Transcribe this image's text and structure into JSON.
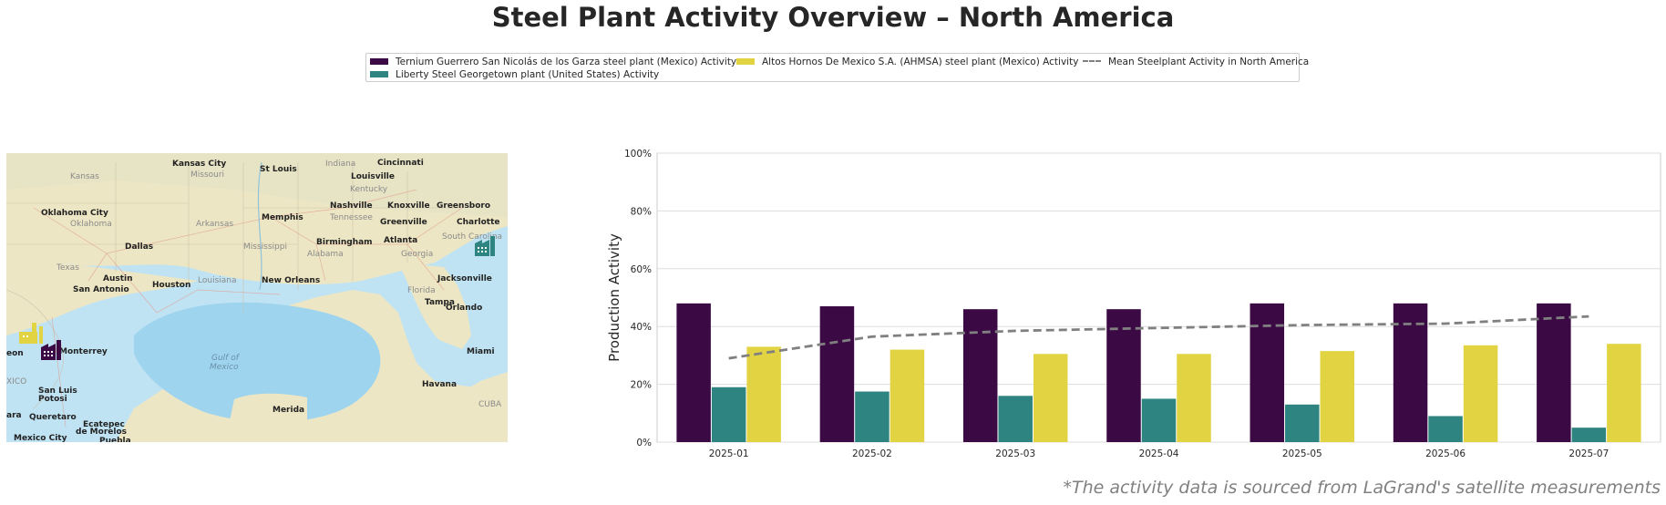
{
  "title": "Steel Plant Activity Overview – North America",
  "footnote": "*The activity data is sourced from LaGrand's satellite measurements",
  "legend": {
    "ternium": "Ternium Guerrero San Nicolás de los Garza steel plant (Mexico) Activity",
    "liberty": "Liberty Steel Georgetown plant (United States) Activity",
    "ahmsa": "Altos Hornos De Mexico S.A. (AHMSA) steel plant (Mexico) Activity",
    "mean": "Mean Steelplant Activity in North America"
  },
  "colors": {
    "ternium": "#3b0a45",
    "liberty": "#2e8480",
    "ahmsa": "#e1d341",
    "mean": "#808080"
  },
  "map": {
    "icons": [
      "factory-icon-ternium",
      "factory-icon-liberty",
      "factory-icon-ahmsa"
    ],
    "cities": [
      {
        "name": "Kansas City",
        "cls": "mlab"
      },
      {
        "name": "St Louis",
        "cls": "mlab"
      },
      {
        "name": "Indiana",
        "cls": "mlab2"
      },
      {
        "name": "Cincinnati",
        "cls": "mlab"
      },
      {
        "name": "Kansas",
        "cls": "mlab2"
      },
      {
        "name": "Missouri",
        "cls": "mlab2"
      },
      {
        "name": "Louisville",
        "cls": "mlab"
      },
      {
        "name": "Kentucky",
        "cls": "mlab2"
      },
      {
        "name": "Oklahoma City",
        "cls": "mlab"
      },
      {
        "name": "Oklahoma",
        "cls": "mlab2"
      },
      {
        "name": "Arkansas",
        "cls": "mlab2"
      },
      {
        "name": "Memphis",
        "cls": "mlab"
      },
      {
        "name": "Nashville",
        "cls": "mlab"
      },
      {
        "name": "Knoxville",
        "cls": "mlab"
      },
      {
        "name": "Greensboro",
        "cls": "mlab"
      },
      {
        "name": "Tennessee",
        "cls": "mlab2"
      },
      {
        "name": "Greenville",
        "cls": "mlab"
      },
      {
        "name": "Charlotte",
        "cls": "mlab"
      },
      {
        "name": "Dallas",
        "cls": "mlab"
      },
      {
        "name": "Mississippi",
        "cls": "mlab2"
      },
      {
        "name": "Birmingham",
        "cls": "mlab"
      },
      {
        "name": "Atlanta",
        "cls": "mlab"
      },
      {
        "name": "South Carolina",
        "cls": "mlab2"
      },
      {
        "name": "Alabama",
        "cls": "mlab2"
      },
      {
        "name": "Georgia",
        "cls": "mlab2"
      },
      {
        "name": "Texas",
        "cls": "mlab2"
      },
      {
        "name": "Austin",
        "cls": "mlab"
      },
      {
        "name": "Houston",
        "cls": "mlab"
      },
      {
        "name": "Louisiana",
        "cls": "mlab2"
      },
      {
        "name": "New Orleans",
        "cls": "mlab"
      },
      {
        "name": "Jacksonville",
        "cls": "mlab"
      },
      {
        "name": "San Antonio",
        "cls": "mlab"
      },
      {
        "name": "Florida",
        "cls": "mlab2"
      },
      {
        "name": "Orlando",
        "cls": "mlab"
      },
      {
        "name": "Tampa",
        "cls": "mlab"
      },
      {
        "name": "Gulf of",
        "cls": "mwater"
      },
      {
        "name": "Mexico",
        "cls": "mwater"
      },
      {
        "name": "Monterrey",
        "cls": "mlab"
      },
      {
        "name": "Miami",
        "cls": "mlab"
      },
      {
        "name": "eon",
        "cls": "mlab"
      },
      {
        "name": "XICO",
        "cls": "mlab2"
      },
      {
        "name": "San Luis",
        "cls": "mlab"
      },
      {
        "name": "Potosi",
        "cls": "mlab"
      },
      {
        "name": "Havana",
        "cls": "mlab"
      },
      {
        "name": "Merida",
        "cls": "mlab"
      },
      {
        "name": "ara",
        "cls": "mlab"
      },
      {
        "name": "Queretaro",
        "cls": "mlab"
      },
      {
        "name": "Ecatepec",
        "cls": "mlab"
      },
      {
        "name": "de Morelos",
        "cls": "mlab"
      },
      {
        "name": "CUBA",
        "cls": "mlab2"
      },
      {
        "name": "Mexico City",
        "cls": "mlab"
      },
      {
        "name": "Puebla",
        "cls": "mlab"
      }
    ]
  },
  "chart_data": {
    "type": "bar",
    "title": "",
    "xlabel": "",
    "ylabel": "Production Activity",
    "ylim": [
      0,
      100
    ],
    "yticks": [
      "0%",
      "20%",
      "40%",
      "60%",
      "80%",
      "100%"
    ],
    "grid": true,
    "legend_position": "top-center",
    "categories": [
      "2025-01",
      "2025-02",
      "2025-03",
      "2025-04",
      "2025-05",
      "2025-06",
      "2025-07"
    ],
    "series": [
      {
        "name": "Ternium Guerrero San Nicolás de los Garza steel plant (Mexico) Activity",
        "type": "bar",
        "color": "#3b0a45",
        "values": [
          48,
          47,
          46,
          46,
          48,
          48,
          48
        ]
      },
      {
        "name": "Liberty Steel Georgetown plant (United States) Activity",
        "type": "bar",
        "color": "#2e8480",
        "values": [
          19,
          17.5,
          16,
          15,
          13,
          9,
          5
        ]
      },
      {
        "name": "Altos Hornos De Mexico S.A. (AHMSA) steel plant (Mexico) Activity",
        "type": "bar",
        "color": "#e1d341",
        "values": [
          33,
          32,
          30.5,
          30.5,
          31.5,
          33.5,
          34
        ]
      },
      {
        "name": "Mean Steelplant Activity in North America",
        "type": "line",
        "style": "dashed",
        "color": "#808080",
        "values": [
          29,
          36.5,
          38.5,
          39.5,
          40.5,
          41,
          43.5
        ]
      }
    ]
  }
}
